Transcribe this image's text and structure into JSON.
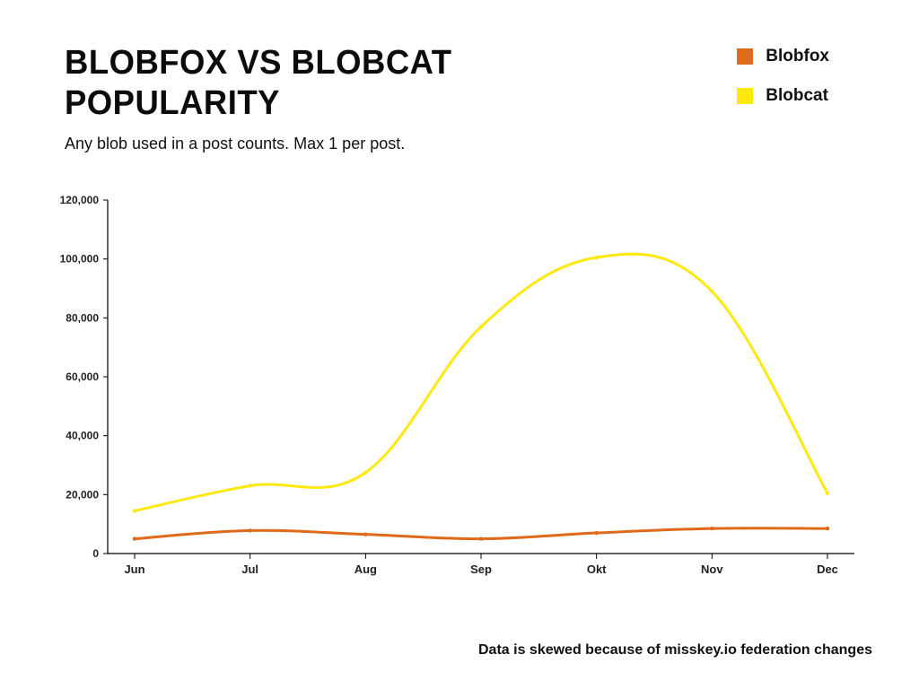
{
  "title": "BLOBFOX VS BLOBCAT POPULARITY",
  "subtitle": "Any blob used in a post counts. Max 1 per post.",
  "footnote": "Data is skewed because of misskey.io federation changes",
  "legend": {
    "items": [
      {
        "label": "Blobfox",
        "color": "#e06a1a"
      },
      {
        "label": "Blobcat",
        "color": "#fde910"
      }
    ]
  },
  "chart": {
    "type": "line",
    "background_color": "#ffffff",
    "axis_color": "#000000",
    "title_fontsize": 38,
    "label_fontsize": 13,
    "ytick_fontsize": 12,
    "line_width": 3,
    "marker_radius": 2.2,
    "x": {
      "categories": [
        "Jun",
        "Jul",
        "Aug",
        "Sep",
        "Okt",
        "Nov",
        "Dec"
      ]
    },
    "y": {
      "min": 0,
      "max": 120000,
      "tick_step": 20000,
      "tick_labels": [
        "0",
        "20,000",
        "40,000",
        "60,000",
        "80,000",
        "100,000",
        "120,000"
      ]
    },
    "series": [
      {
        "name": "Blobfox",
        "color": "#e06a1a",
        "values": [
          5000,
          7800,
          6500,
          5000,
          7000,
          8500,
          8500
        ]
      },
      {
        "name": "Blobcat",
        "color": "#fde910",
        "values": [
          14500,
          23000,
          27500,
          77000,
          100500,
          89000,
          20500
        ]
      }
    ]
  }
}
